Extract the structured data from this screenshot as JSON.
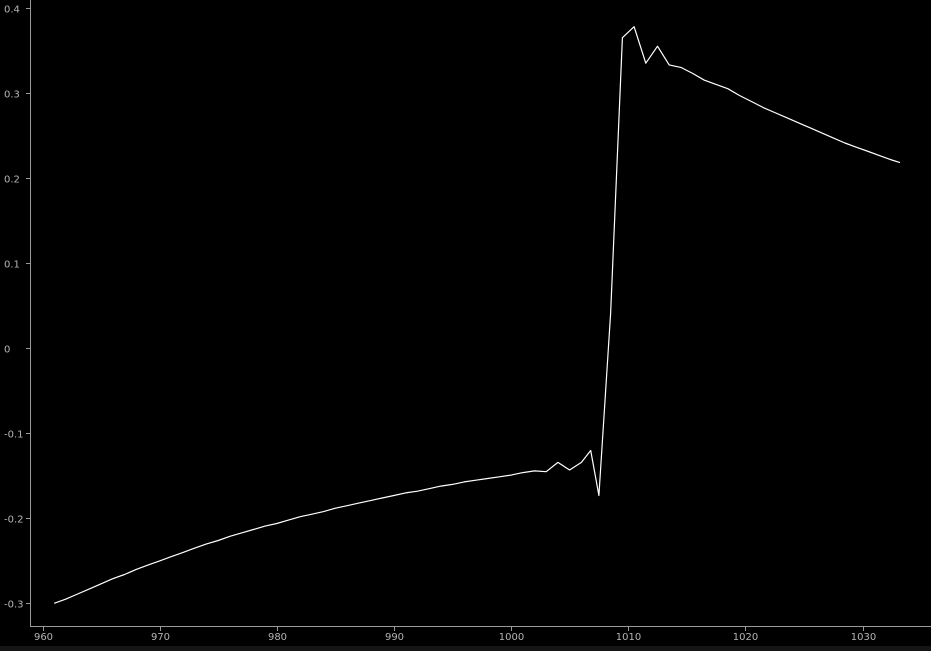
{
  "colors": {
    "background": "#000000",
    "axis": "#9a9a9a",
    "tick_text": "#b4b4b4",
    "series": "#ffffff"
  },
  "chart_data": {
    "type": "line",
    "title": "",
    "xlabel": "",
    "ylabel": "",
    "xlim": [
      959,
      1036
    ],
    "ylim": [
      -0.31,
      0.4
    ],
    "grid": false,
    "legend": "none",
    "x_ticks": [
      960,
      970,
      980,
      990,
      1000,
      1010,
      1020,
      1030
    ],
    "x_tick_labels": [
      "960",
      "970",
      "980",
      "990",
      "1000",
      "1010",
      "1020",
      "1030"
    ],
    "y_ticks": [
      -0.3,
      -0.2,
      -0.1,
      0,
      0.1,
      0.2,
      0.3,
      0.4
    ],
    "y_tick_labels": [
      "-0.3",
      "-0.2",
      "-0.1",
      "0",
      "0.1",
      "0.2",
      "0.3",
      "0.4"
    ],
    "series": [
      {
        "color": "#ffffff",
        "x": [
          961,
          962,
          963,
          964,
          965,
          966,
          967,
          968,
          969,
          970,
          971,
          972,
          973,
          974,
          975,
          976,
          977,
          978,
          979,
          980,
          981,
          982,
          983,
          984,
          985,
          986,
          987,
          988,
          989,
          990,
          991,
          992,
          993,
          994,
          995,
          996,
          997,
          998,
          999,
          1000,
          1001,
          1002,
          1003,
          1004,
          1005,
          1006,
          1006.8,
          1007.5,
          1008.5,
          1009.5,
          1010.5,
          1011.5,
          1012.5,
          1013.5,
          1014.5,
          1015.5,
          1016.5,
          1017.5,
          1018.5,
          1019.5,
          1020.5,
          1021.5,
          1022.5,
          1023.5,
          1024.5,
          1025.5,
          1026.5,
          1027.5,
          1028.5,
          1029.5,
          1030.5,
          1031.5,
          1032.5,
          1033.2
        ],
        "y": [
          -0.301,
          -0.296,
          -0.29,
          -0.284,
          -0.278,
          -0.272,
          -0.267,
          -0.261,
          -0.256,
          -0.251,
          -0.246,
          -0.241,
          -0.236,
          -0.231,
          -0.227,
          -0.222,
          -0.218,
          -0.214,
          -0.21,
          -0.207,
          -0.203,
          -0.199,
          -0.196,
          -0.193,
          -0.189,
          -0.186,
          -0.183,
          -0.18,
          -0.177,
          -0.174,
          -0.171,
          -0.169,
          -0.166,
          -0.163,
          -0.161,
          -0.158,
          -0.156,
          -0.154,
          -0.152,
          -0.15,
          -0.147,
          -0.145,
          -0.146,
          -0.135,
          -0.144,
          -0.135,
          -0.121,
          -0.174,
          0.04,
          0.365,
          0.378,
          0.335,
          0.355,
          0.333,
          0.33,
          0.323,
          0.315,
          0.31,
          0.305,
          0.297,
          0.29,
          0.283,
          0.277,
          0.271,
          0.265,
          0.259,
          0.253,
          0.247,
          0.241,
          0.236,
          0.231,
          0.226,
          0.221,
          0.218
        ]
      }
    ]
  }
}
